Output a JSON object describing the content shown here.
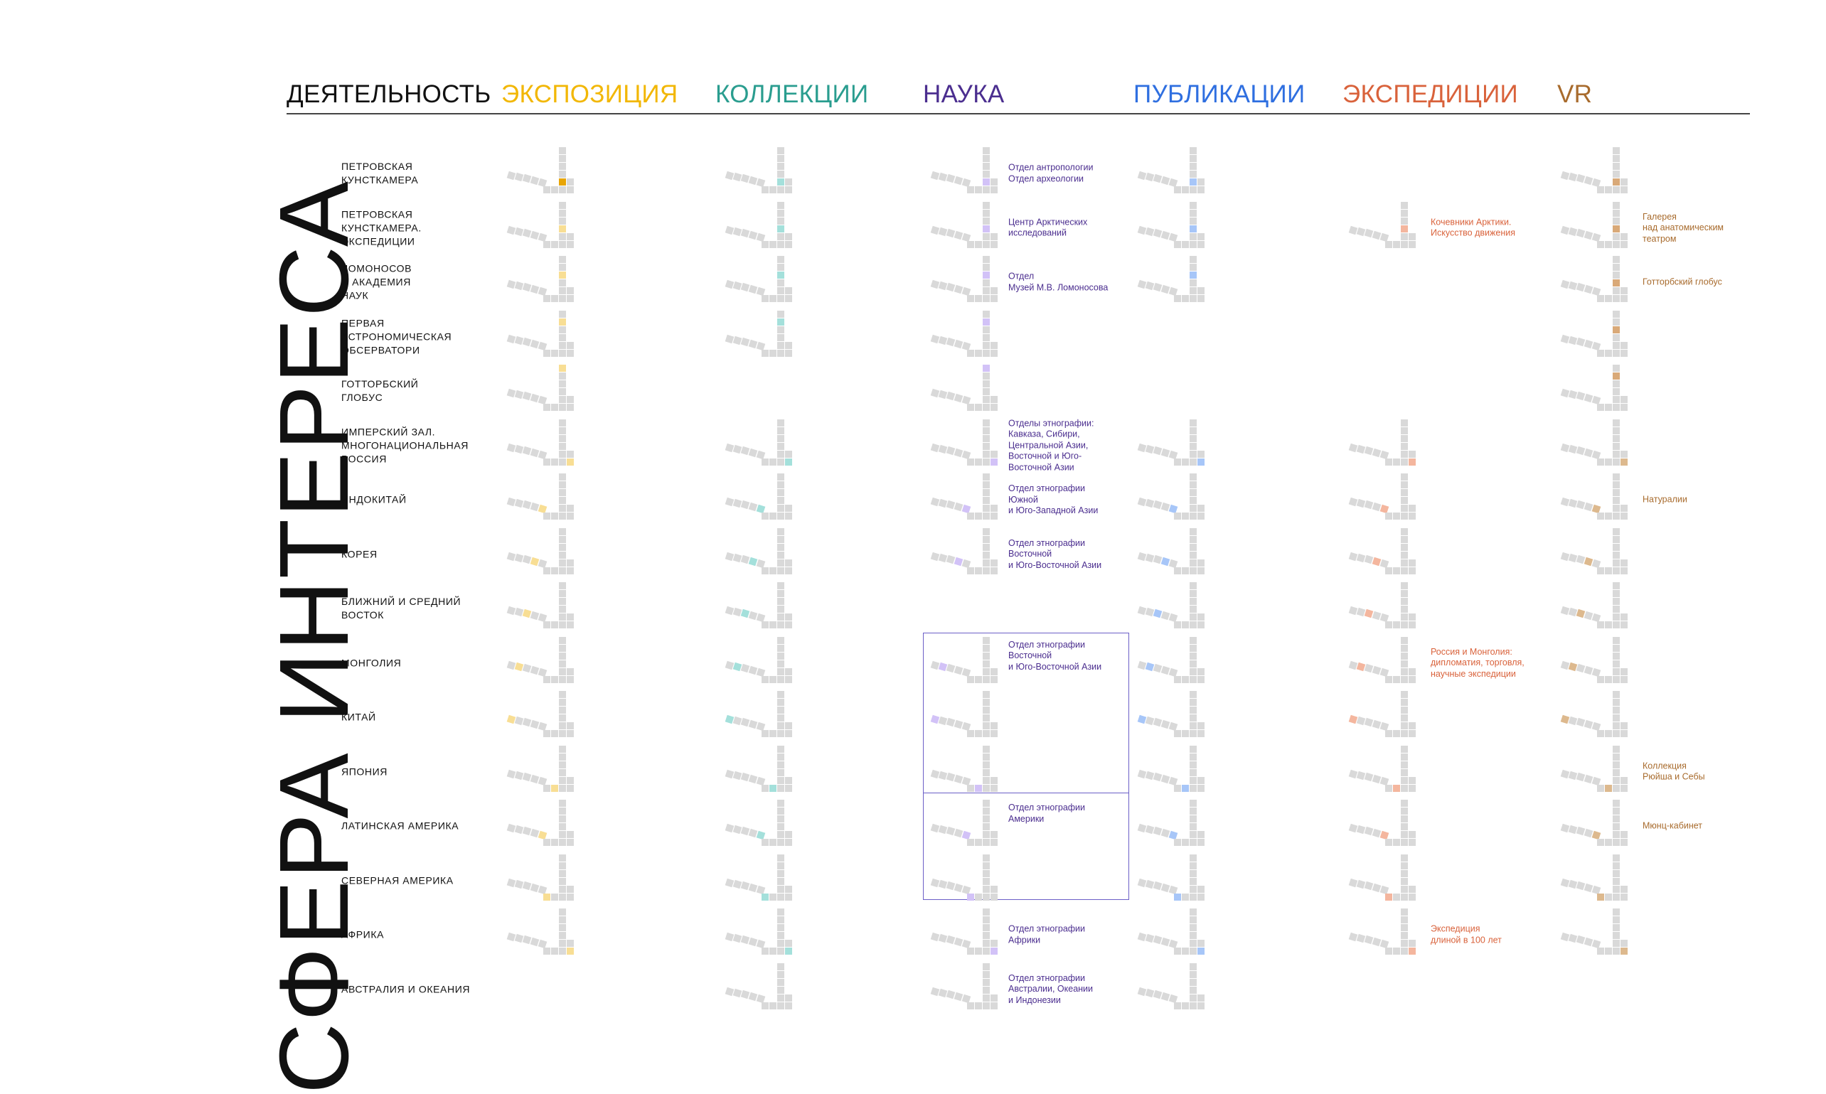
{
  "header": {
    "title": "ДЕЯТЕЛЬНОСТЬ",
    "columns": [
      {
        "key": "exp",
        "label": "ЭКСПОЗИЦИЯ",
        "color": "#F2B705"
      },
      {
        "key": "col",
        "label": "КОЛЛЕКЦИИ",
        "color": "#2A9D8F"
      },
      {
        "key": "sci",
        "label": "НАУКА",
        "color": "#4B2E8F"
      },
      {
        "key": "pub",
        "label": "ПУБЛИКАЦИИ",
        "color": "#2F6FE0"
      },
      {
        "key": "expd",
        "label": "ЭКСПЕДИЦИИ",
        "color": "#D9623B"
      },
      {
        "key": "vr",
        "label": "VR",
        "color": "#A86B2D"
      }
    ]
  },
  "vertical_title": "СФЕРА ИНТЕРЕСА",
  "rows": [
    {
      "label": "ПЕТРОВСКАЯ\nКУНСТКАМЕРА"
    },
    {
      "label": "ПЕТРОВСКАЯ\nКУНСТКАМЕРА.\nЭКСПЕДИЦИИ"
    },
    {
      "label": "ЛОМОНОСОВ\nИ АКАДЕМИЯ\nНАУК"
    },
    {
      "label": "ПЕРВАЯ\nАСТРОНОМИЧЕСКАЯ\nОБСЕРВАТОРИ"
    },
    {
      "label": "ГОТТОРБСКИЙ\nГЛОБУС"
    },
    {
      "label": "ИМПЕРСКИЙ ЗАЛ.\nМНОГОНАЦИОНАЛЬНАЯ\nРОССИЯ"
    },
    {
      "label": "ИНДОКИТАЙ"
    },
    {
      "label": "КОРЕЯ"
    },
    {
      "label": "БЛИЖНИЙ И СРЕДНИЙ\nВОСТОК"
    },
    {
      "label": "МОНГОЛИЯ"
    },
    {
      "label": "КИТАЙ"
    },
    {
      "label": "ЯПОНИЯ"
    },
    {
      "label": "ЛАТИНСКАЯ АМЕРИКА"
    },
    {
      "label": "СЕВЕРНАЯ АМЕРИКА"
    },
    {
      "label": "АФРИКА"
    },
    {
      "label": "АВСТРАЛИЯ И ОКЕАНИЯ"
    }
  ],
  "presence": {
    "exp": [
      1,
      1,
      1,
      1,
      1,
      1,
      1,
      1,
      1,
      1,
      1,
      1,
      1,
      1,
      1,
      0
    ],
    "col": [
      1,
      1,
      1,
      1,
      0,
      1,
      1,
      1,
      1,
      1,
      1,
      1,
      1,
      1,
      1,
      1
    ],
    "sci": [
      1,
      1,
      1,
      1,
      1,
      1,
      1,
      1,
      0,
      1,
      1,
      1,
      1,
      1,
      1,
      1
    ],
    "pub": [
      1,
      1,
      1,
      0,
      0,
      1,
      1,
      1,
      1,
      1,
      1,
      1,
      1,
      1,
      1,
      1
    ],
    "expd": [
      0,
      1,
      0,
      0,
      0,
      1,
      1,
      1,
      1,
      1,
      1,
      1,
      1,
      1,
      1,
      0
    ],
    "vr": [
      1,
      1,
      1,
      1,
      1,
      1,
      1,
      1,
      1,
      1,
      1,
      1,
      1,
      1,
      1,
      0
    ]
  },
  "notes": {
    "sci": [
      {
        "row": 0,
        "text": "Отдел антропологии\nОтдел археологии"
      },
      {
        "row": 1,
        "text": "Центр Арктических\nисследований"
      },
      {
        "row": 2,
        "text": "Отдел\nМузей М.В. Ломоносова"
      },
      {
        "row": 5,
        "text": "Отделы этнографии:\nКавказа, Сибири,\nЦентральной Азии,\nВосточной и Юго-\nВосточной Азии"
      },
      {
        "row": 6,
        "text": "Отдел этнографии\nЮжной\nи Юго-Западной Азии"
      },
      {
        "row": 7,
        "text": "Отдел этнографии\nВосточной\nи Юго-Восточной Азии"
      },
      {
        "row": 9,
        "text": "Отдел этнографии\nВосточной\nи Юго-Восточной Азии",
        "top": true
      },
      {
        "row": 12,
        "text": "Отдел этнографии\nАмерики",
        "top": true
      },
      {
        "row": 14,
        "text": "Отдел этнографии\nАфрики"
      },
      {
        "row": 15,
        "text": "Отдел этнографии\nАвстралии, Океании\nи Индонезии"
      }
    ],
    "expd": [
      {
        "row": 1,
        "text": "Кочевники Арктики.\nИскусство движения"
      },
      {
        "row": 9,
        "text": "Россия и Монголия:\nдипломатия, торговля,\nнаучные экспедиции"
      },
      {
        "row": 14,
        "text": "Экспедиция\nдлиной в 100 лет"
      }
    ],
    "vr": [
      {
        "row": 1,
        "text": "Галерея\nнад анатомическим\nтеатром"
      },
      {
        "row": 2,
        "text": "Готторбский глобус"
      },
      {
        "row": 6,
        "text": "Натуралии"
      },
      {
        "row": 11,
        "text": "Коллекция\nРюйша и Себы"
      },
      {
        "row": 12,
        "text": "Мюнц-кабинет"
      }
    ]
  }
}
